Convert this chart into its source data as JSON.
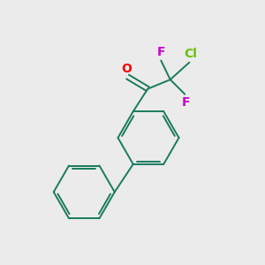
{
  "background_color": "#ebebeb",
  "bond_color": "#1a7a5e",
  "atom_colors": {
    "O": "#ff0000",
    "F": "#cc00cc",
    "Cl": "#6abf00",
    "C": "#1a7a5e"
  },
  "figsize": [
    3.0,
    3.0
  ],
  "dpi": 100,
  "xlim": [
    0,
    10
  ],
  "ylim": [
    0,
    10
  ]
}
